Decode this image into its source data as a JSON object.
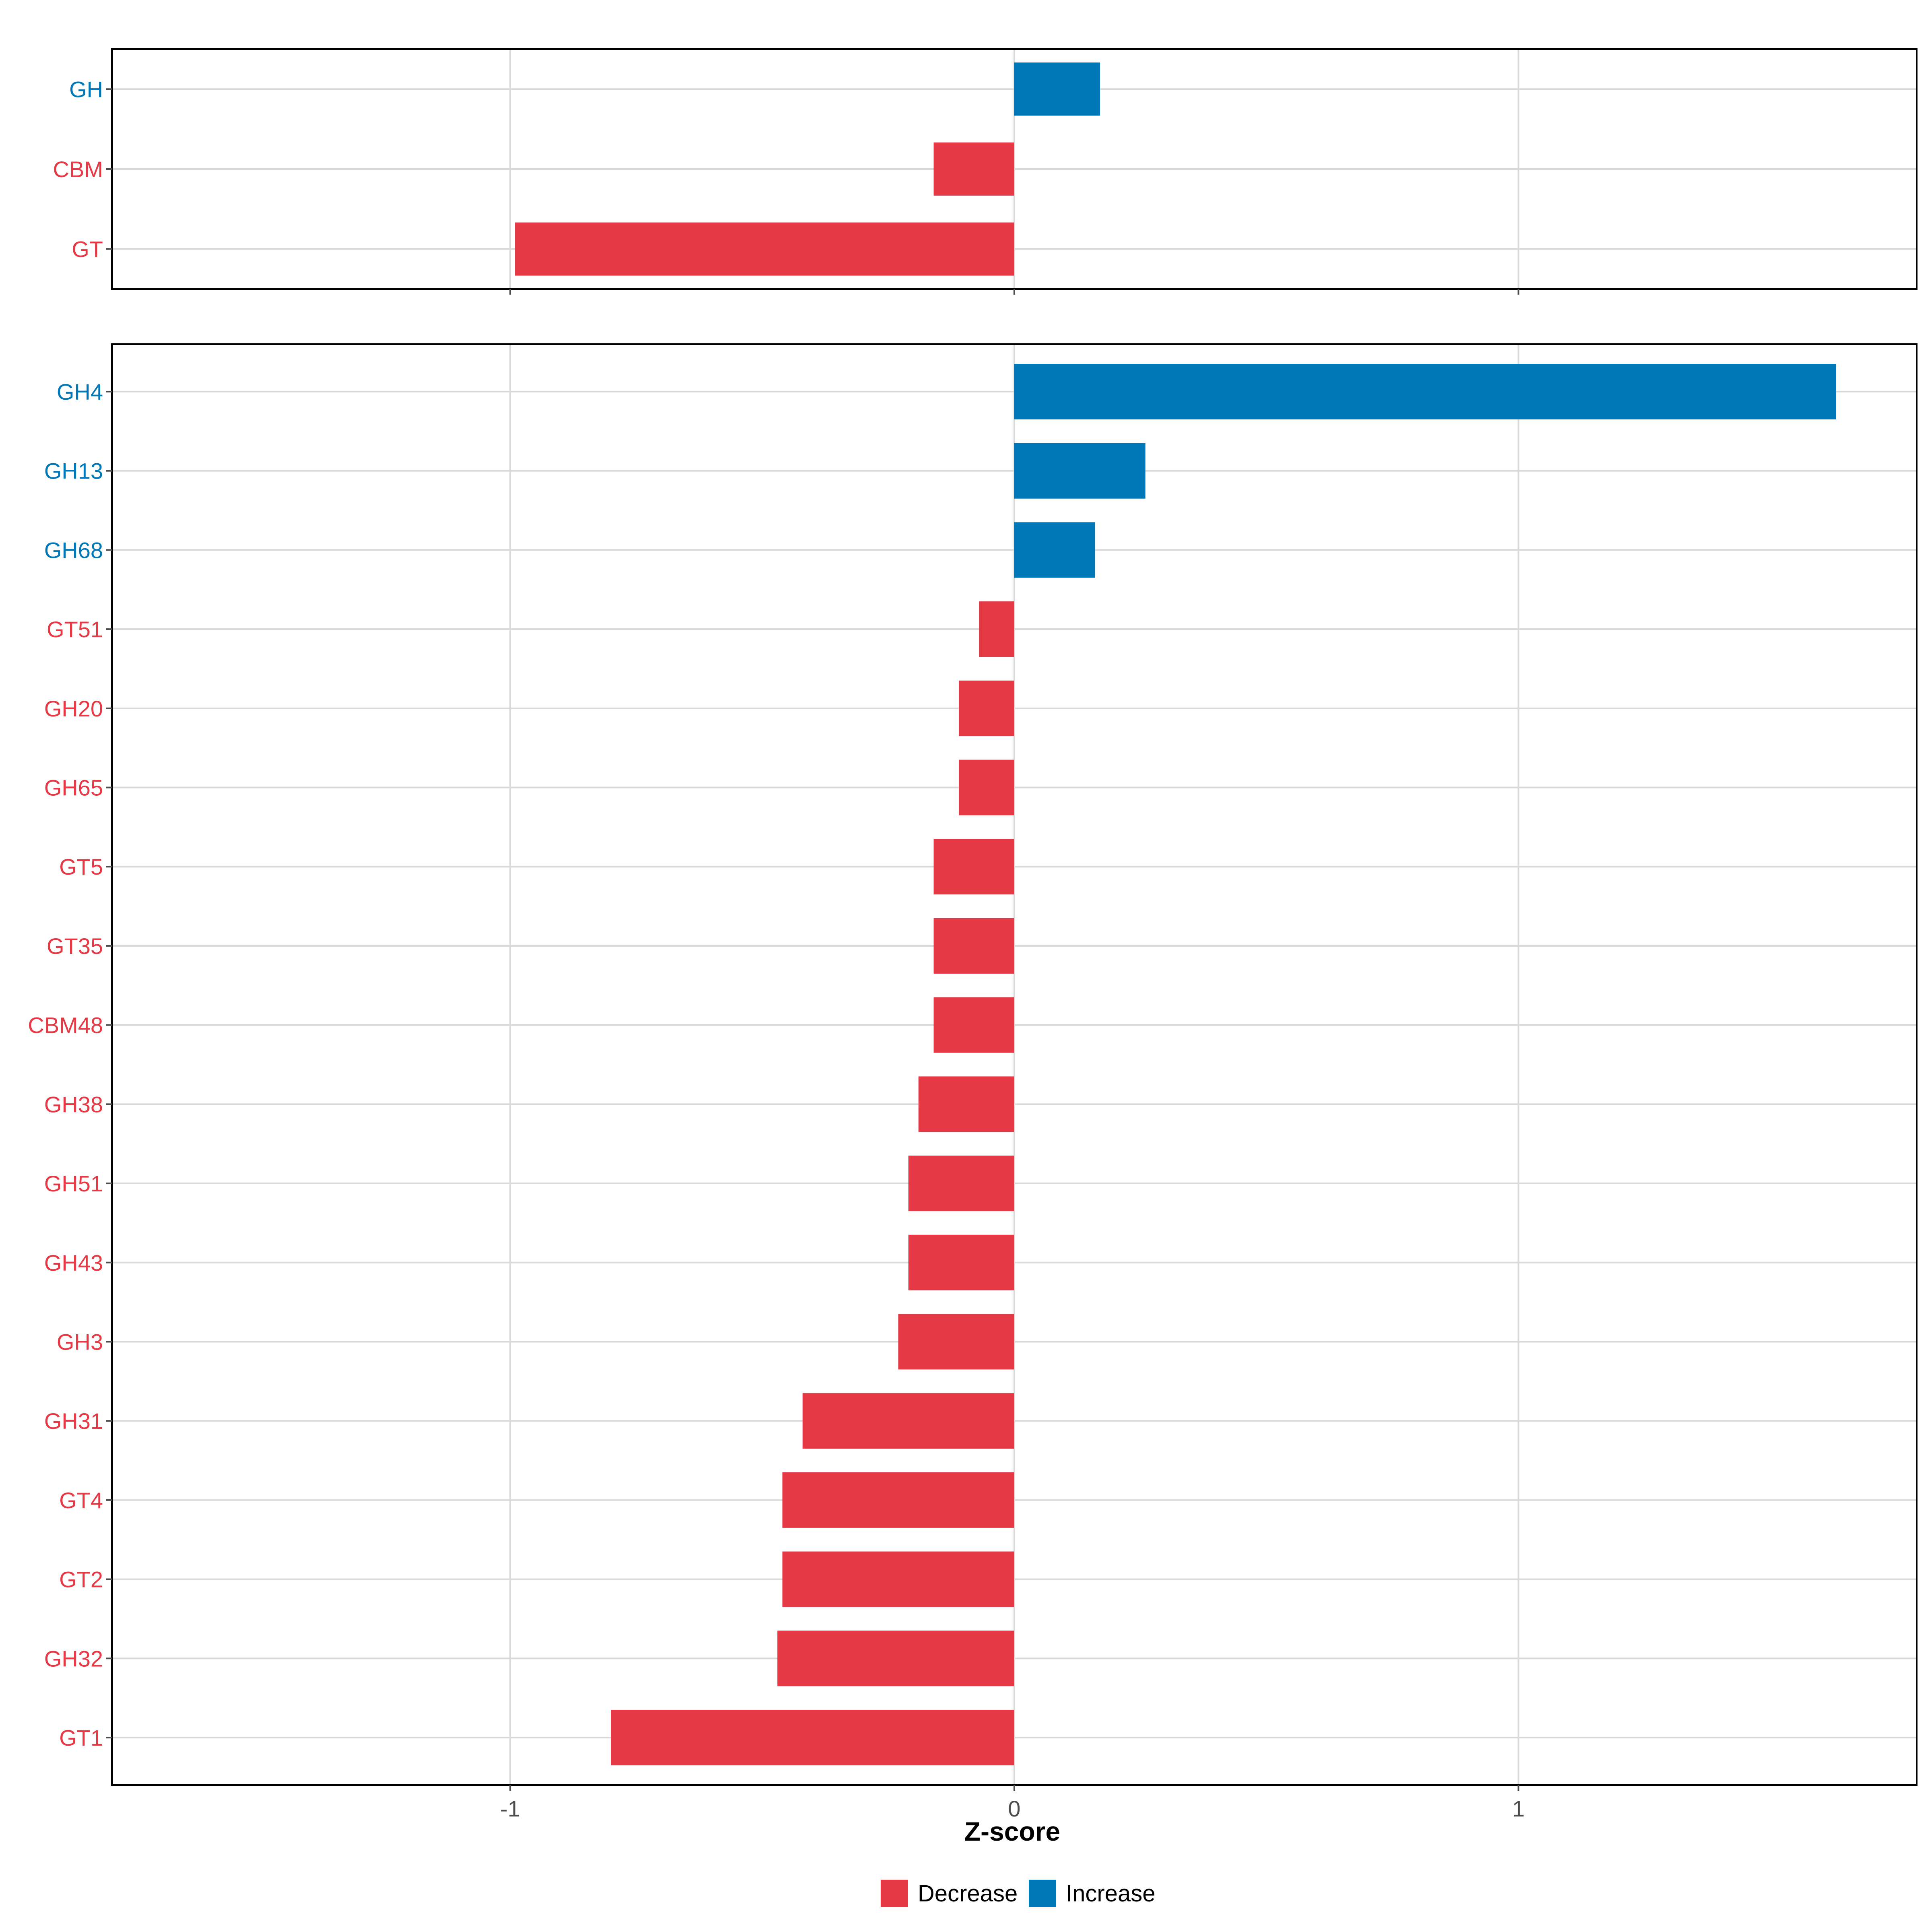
{
  "colors": {
    "decrease": "#e63946",
    "increase": "#0077b6",
    "grid": "#d9d9d9",
    "frame": "#000000",
    "tick_text": "#4d4d4d"
  },
  "chart_data": [
    {
      "type": "bar",
      "orientation": "horizontal",
      "categories": [
        "GH",
        "CBM",
        "GT"
      ],
      "values": [
        0.17,
        -0.16,
        -0.99
      ],
      "direction": [
        "Increase",
        "Decrease",
        "Decrease"
      ],
      "xlim": [
        -1.79,
        1.79
      ],
      "xticks": [
        -1,
        0,
        1
      ],
      "grid": true
    },
    {
      "type": "bar",
      "orientation": "horizontal",
      "categories": [
        "GH4",
        "GH13",
        "GH68",
        "GT51",
        "GH20",
        "GH65",
        "GT5",
        "GT35",
        "CBM48",
        "GH38",
        "GH51",
        "GH43",
        "GH3",
        "GH31",
        "GT4",
        "GT2",
        "GH32",
        "GT1"
      ],
      "values": [
        1.63,
        0.26,
        0.16,
        -0.07,
        -0.11,
        -0.11,
        -0.16,
        -0.16,
        -0.16,
        -0.19,
        -0.21,
        -0.21,
        -0.23,
        -0.42,
        -0.46,
        -0.46,
        -0.47,
        -0.8
      ],
      "direction": [
        "Increase",
        "Increase",
        "Increase",
        "Decrease",
        "Decrease",
        "Decrease",
        "Decrease",
        "Decrease",
        "Decrease",
        "Decrease",
        "Decrease",
        "Decrease",
        "Decrease",
        "Decrease",
        "Decrease",
        "Decrease",
        "Decrease",
        "Decrease"
      ],
      "xlim": [
        -1.79,
        1.79
      ],
      "xticks": [
        -1,
        0,
        1
      ],
      "xlabel": "Z-score",
      "grid": true
    }
  ],
  "legend": {
    "position": "bottom",
    "items": [
      {
        "label": "Decrease",
        "color": "#e63946"
      },
      {
        "label": "Increase",
        "color": "#0077b6"
      }
    ]
  }
}
